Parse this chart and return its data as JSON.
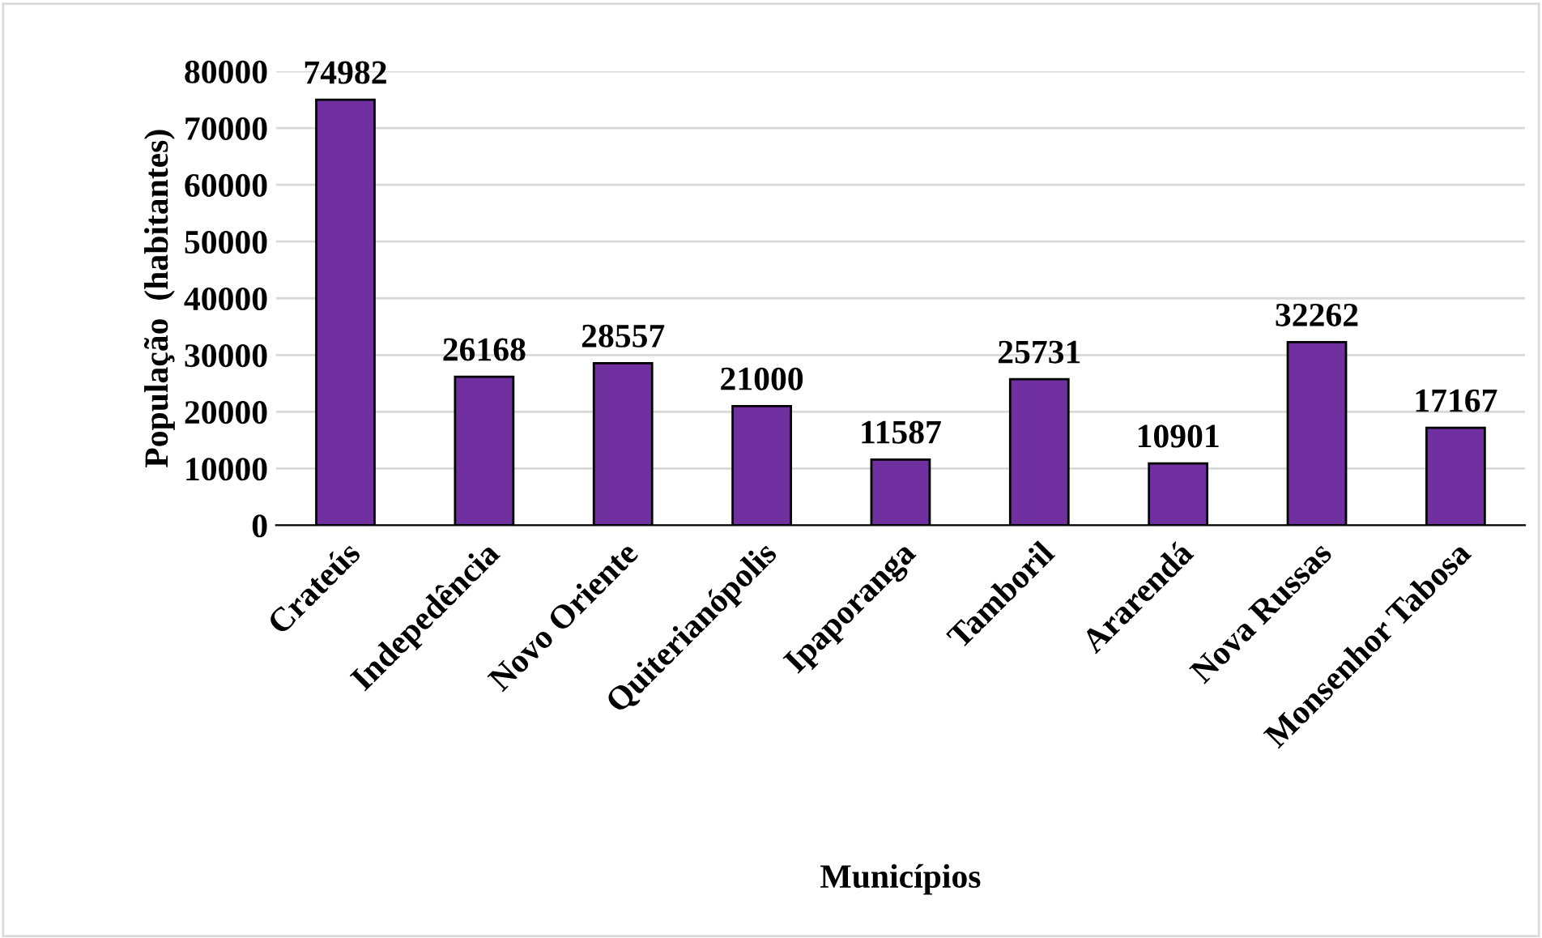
{
  "chart_data": {
    "type": "bar",
    "categories": [
      "Crateús",
      "Indepedência",
      "Novo Oriente",
      "Quiterianópolis",
      "Ipaporanga",
      "Tamboril",
      "Ararendá",
      "Nova Russas",
      "Monsenhor Tabosa"
    ],
    "values": [
      74982,
      26168,
      28557,
      21000,
      11587,
      25731,
      10901,
      32262,
      17167
    ],
    "color": "#7030a0",
    "xlabel": "Municípios",
    "ylabel": "População  (habitantes)",
    "ylim": [
      0,
      80000
    ],
    "yticks": [
      0,
      10000,
      20000,
      30000,
      40000,
      50000,
      60000,
      70000,
      80000
    ],
    "grid": "y",
    "data_labels": true
  }
}
